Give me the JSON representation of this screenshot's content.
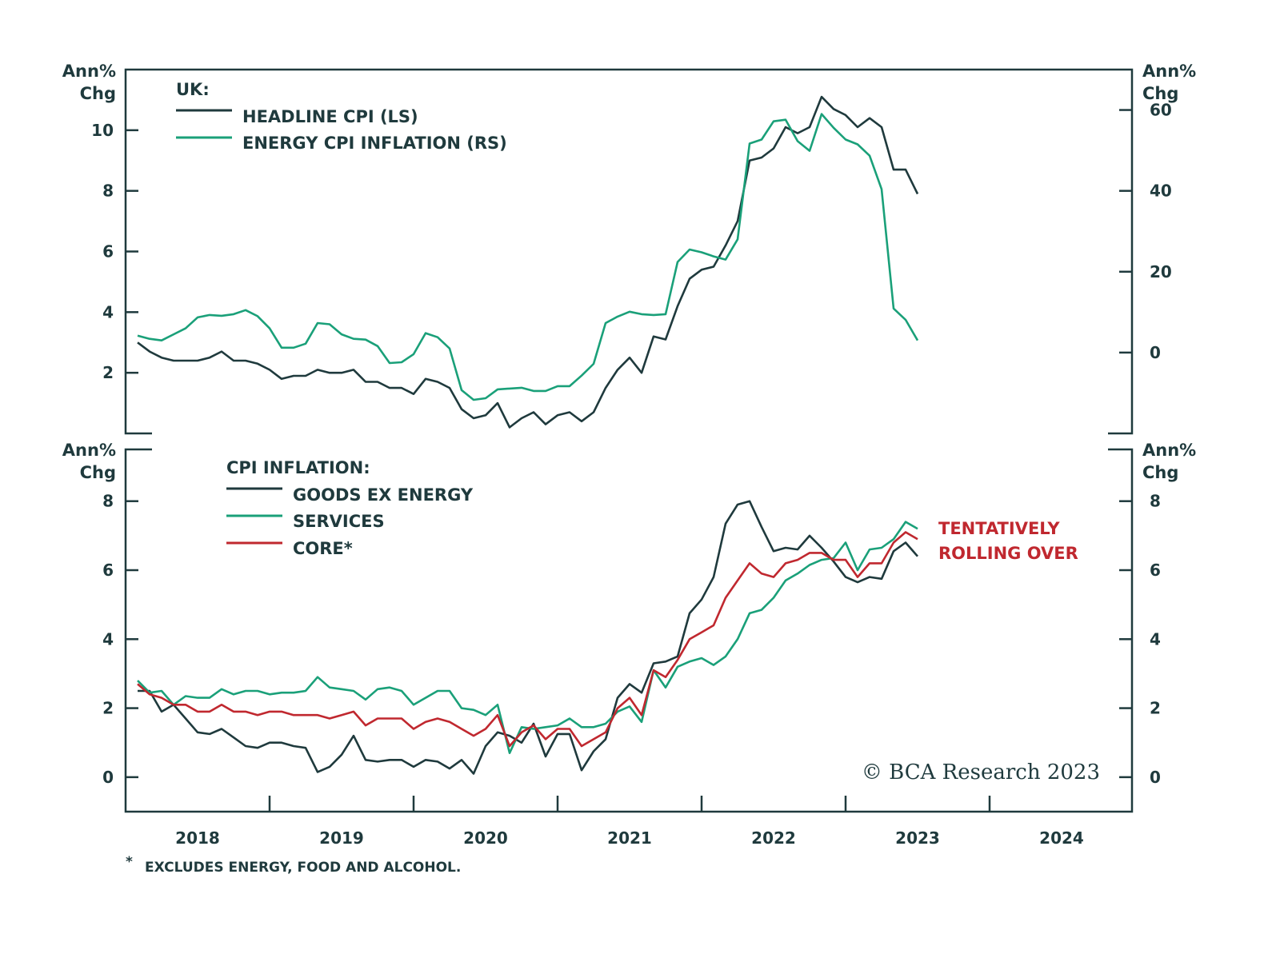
{
  "colors": {
    "dark": "#1f3a3d",
    "green": "#1aa079",
    "red": "#c0282f"
  },
  "x_tick_labels": [
    "2018",
    "2019",
    "2020",
    "2021",
    "2022",
    "2023",
    "2024"
  ],
  "footnote_mark": "*",
  "footnote": "EXCLUDES ENERGY, FOOD AND ALCOHOL.",
  "copyright": "© BCA Research 2023",
  "chart_data": [
    {
      "type": "line",
      "panel": "top",
      "legend_title": "UK:",
      "left_axis_label": [
        "Ann%",
        "Chg"
      ],
      "right_axis_label": [
        "Ann%",
        "Chg"
      ],
      "left_ylim": [
        0,
        12
      ],
      "right_ylim": [
        -20,
        70
      ],
      "left_ticks": [
        2,
        4,
        6,
        8,
        10
      ],
      "right_ticks": [
        0,
        20,
        40,
        60
      ],
      "x_start": "2018-01",
      "x_end": "2023-06",
      "x_frequency": "monthly",
      "xlim": [
        "2018-01",
        "2024-12"
      ],
      "legend_placement": "top-left",
      "grid": false,
      "series": [
        {
          "name": "HEADLINE CPI (LS)",
          "axis": "left",
          "color": "#1f3a3d",
          "values": [
            3.0,
            2.7,
            2.5,
            2.4,
            2.4,
            2.4,
            2.5,
            2.7,
            2.4,
            2.4,
            2.3,
            2.1,
            1.8,
            1.9,
            1.9,
            2.1,
            2.0,
            2.0,
            2.1,
            1.7,
            1.7,
            1.5,
            1.5,
            1.3,
            1.8,
            1.7,
            1.5,
            0.8,
            0.5,
            0.6,
            1.0,
            0.2,
            0.5,
            0.7,
            0.3,
            0.6,
            0.7,
            0.4,
            0.7,
            1.5,
            2.1,
            2.5,
            2.0,
            3.2,
            3.1,
            4.2,
            5.1,
            5.4,
            5.5,
            6.2,
            7.0,
            9.0,
            9.1,
            9.4,
            10.1,
            9.9,
            10.1,
            11.1,
            10.7,
            10.5,
            10.1,
            10.4,
            10.1,
            8.7,
            8.7,
            7.9
          ]
        },
        {
          "name": "ENERGY CPI INFLATION (RS)",
          "axis": "right",
          "color": "#1aa079",
          "values": [
            4.2,
            3.4,
            3.0,
            4.5,
            6.0,
            8.7,
            9.3,
            9.1,
            9.5,
            10.5,
            9.0,
            6.0,
            1.2,
            1.2,
            2.2,
            7.3,
            7.0,
            4.5,
            3.4,
            3.2,
            1.6,
            -2.6,
            -2.4,
            -0.4,
            4.8,
            3.8,
            1.0,
            -9.3,
            -11.7,
            -11.3,
            -9.1,
            -8.9,
            -8.7,
            -9.5,
            -9.5,
            -8.3,
            -8.3,
            -5.7,
            -2.8,
            7.3,
            8.9,
            10.1,
            9.5,
            9.3,
            9.5,
            22.4,
            25.5,
            24.8,
            23.8,
            23.0,
            28.0,
            51.7,
            52.7,
            57.2,
            57.6,
            52.3,
            49.9,
            59.0,
            55.6,
            52.7,
            51.5,
            48.7,
            40.4,
            10.9,
            8.1,
            3.0
          ]
        }
      ]
    },
    {
      "type": "line",
      "panel": "bottom",
      "legend_title": "CPI INFLATION:",
      "left_axis_label": [
        "Ann%",
        "Chg"
      ],
      "right_axis_label": [
        "Ann%",
        "Chg"
      ],
      "left_ylim": [
        -1,
        9.5
      ],
      "right_ylim": [
        -1,
        9.5
      ],
      "left_ticks": [
        0,
        2,
        4,
        6,
        8
      ],
      "right_ticks": [
        0,
        2,
        4,
        6,
        8
      ],
      "x_start": "2018-01",
      "x_end": "2023-06",
      "x_frequency": "monthly",
      "xlim": [
        "2018-01",
        "2024-12"
      ],
      "legend_placement": "top-left",
      "grid": false,
      "annotation": [
        "TENTATIVELY",
        "ROLLING OVER"
      ],
      "series": [
        {
          "name": "GOODS EX ENERGY",
          "color": "#1f3a3d",
          "values": [
            2.5,
            2.5,
            1.9,
            2.1,
            1.7,
            1.3,
            1.25,
            1.4,
            1.15,
            0.9,
            0.85,
            1.0,
            1.0,
            0.9,
            0.85,
            0.15,
            0.3,
            0.65,
            1.2,
            0.5,
            0.45,
            0.5,
            0.5,
            0.3,
            0.5,
            0.45,
            0.25,
            0.5,
            0.1,
            0.9,
            1.3,
            1.2,
            1.0,
            1.55,
            0.6,
            1.25,
            1.25,
            0.2,
            0.75,
            1.1,
            2.3,
            2.7,
            2.45,
            3.3,
            3.35,
            3.5,
            4.75,
            5.15,
            5.8,
            7.35,
            7.9,
            8.0,
            7.25,
            6.55,
            6.65,
            6.6,
            7.0,
            6.65,
            6.25,
            5.8,
            5.65,
            5.8,
            5.75,
            6.55,
            6.8,
            6.4
          ]
        },
        {
          "name": "SERVICES",
          "color": "#1aa079",
          "values": [
            2.8,
            2.45,
            2.5,
            2.1,
            2.35,
            2.3,
            2.3,
            2.55,
            2.4,
            2.5,
            2.5,
            2.4,
            2.45,
            2.45,
            2.5,
            2.9,
            2.6,
            2.55,
            2.5,
            2.25,
            2.55,
            2.6,
            2.5,
            2.1,
            2.3,
            2.5,
            2.5,
            2.0,
            1.95,
            1.8,
            2.1,
            0.7,
            1.45,
            1.4,
            1.45,
            1.5,
            1.7,
            1.45,
            1.45,
            1.55,
            1.9,
            2.05,
            1.6,
            3.1,
            2.6,
            3.2,
            3.35,
            3.45,
            3.25,
            3.5,
            4.0,
            4.75,
            4.85,
            5.2,
            5.7,
            5.9,
            6.15,
            6.3,
            6.35,
            6.8,
            6.0,
            6.6,
            6.65,
            6.9,
            7.4,
            7.2
          ]
        },
        {
          "name": "CORE*",
          "color": "#c0282f",
          "values": [
            2.7,
            2.4,
            2.3,
            2.1,
            2.1,
            1.9,
            1.9,
            2.1,
            1.9,
            1.9,
            1.8,
            1.9,
            1.9,
            1.8,
            1.8,
            1.8,
            1.7,
            1.8,
            1.9,
            1.5,
            1.7,
            1.7,
            1.7,
            1.4,
            1.6,
            1.7,
            1.6,
            1.4,
            1.2,
            1.4,
            1.8,
            0.9,
            1.3,
            1.5,
            1.1,
            1.4,
            1.4,
            0.9,
            1.1,
            1.3,
            2.0,
            2.3,
            1.8,
            3.1,
            2.9,
            3.4,
            4.0,
            4.2,
            4.4,
            5.2,
            5.7,
            6.2,
            5.9,
            5.8,
            6.2,
            6.3,
            6.5,
            6.5,
            6.3,
            6.3,
            5.8,
            6.2,
            6.2,
            6.8,
            7.1,
            6.9
          ]
        }
      ]
    }
  ]
}
